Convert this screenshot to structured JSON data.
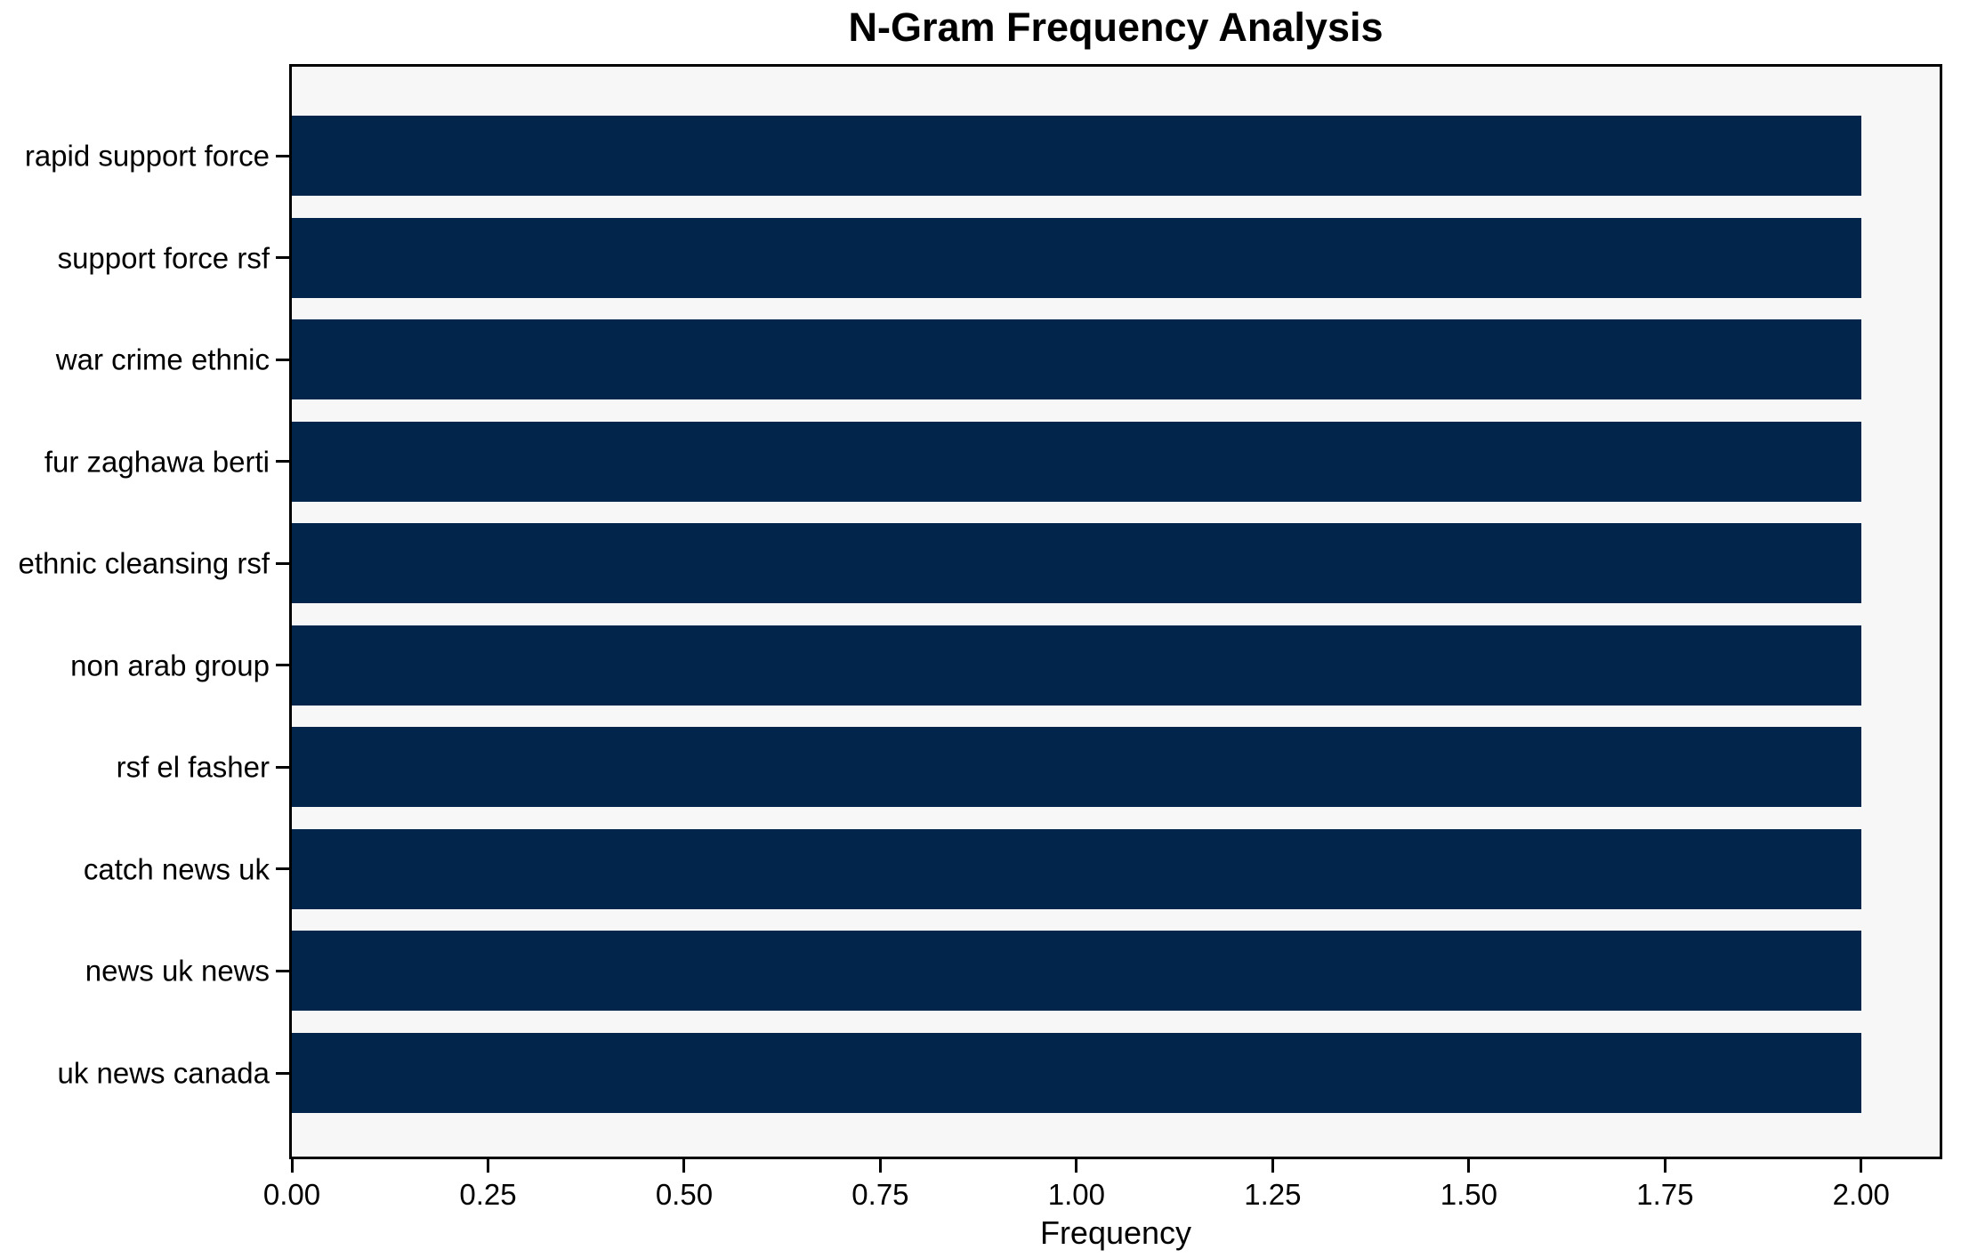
{
  "chart_data": {
    "type": "bar",
    "orientation": "horizontal",
    "title": "N-Gram Frequency Analysis",
    "xlabel": "Frequency",
    "ylabel": "",
    "categories": [
      "rapid support force",
      "support force rsf",
      "war crime ethnic",
      "fur zaghawa berti",
      "ethnic cleansing rsf",
      "non arab group",
      "rsf el fasher",
      "catch news uk",
      "news uk news",
      "uk news canada"
    ],
    "values": [
      2,
      2,
      2,
      2,
      2,
      2,
      2,
      2,
      2,
      2
    ],
    "xlim": [
      0,
      2.1
    ],
    "xticks": [
      0.0,
      0.25,
      0.5,
      0.75,
      1.0,
      1.25,
      1.5,
      1.75,
      2.0
    ],
    "xtick_labels": [
      "0.00",
      "0.25",
      "0.50",
      "0.75",
      "1.00",
      "1.25",
      "1.50",
      "1.75",
      "2.00"
    ],
    "grid": false,
    "legend": null,
    "colors": {
      "bar": "#02254c",
      "plot_background": "#f7f7f7",
      "figure_background": "#ffffff",
      "text": "#000000",
      "spine": "#000000"
    }
  }
}
